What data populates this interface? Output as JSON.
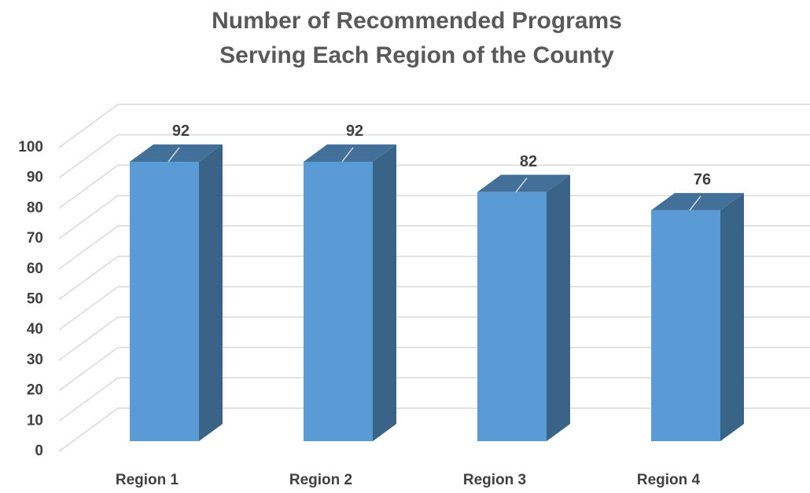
{
  "chart_data": {
    "type": "bar3d",
    "title": [
      "Number of Recommended Programs",
      "Serving Each Region of the County"
    ],
    "categories": [
      "Region 1",
      "Region 2",
      "Region 3",
      "Region 4"
    ],
    "values": [
      92,
      92,
      82,
      76
    ],
    "color": "#5b9bd5",
    "ylim": [
      0,
      100
    ],
    "yticks": [
      0,
      10,
      20,
      30,
      40,
      50,
      60,
      70,
      80,
      90,
      100
    ],
    "grid": true
  }
}
